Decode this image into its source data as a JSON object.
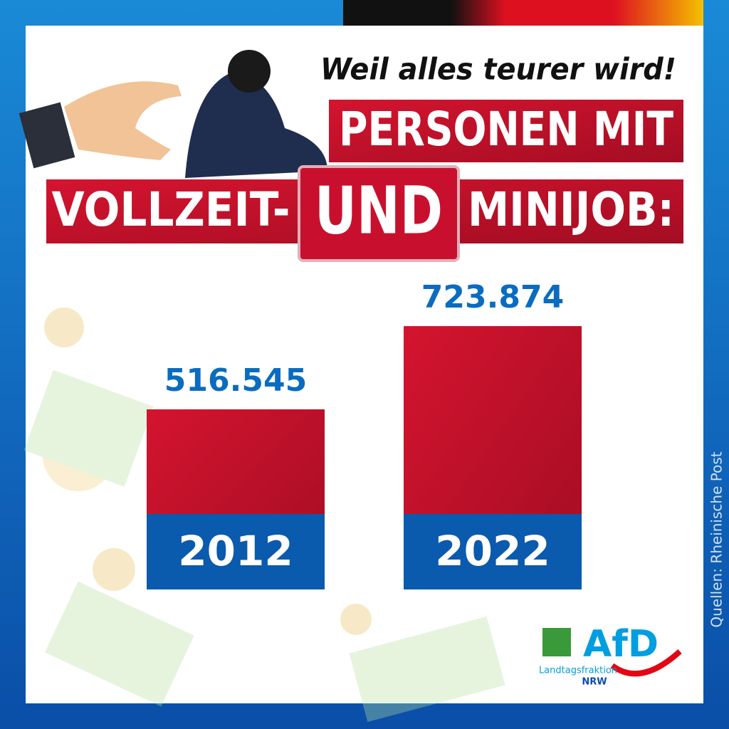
{
  "chart_data": {
    "type": "bar",
    "kicker": "Weil alles teurer wird!",
    "title_lines": [
      "PERSONEN MIT",
      "VOLLZEIT-",
      "UND",
      "MINIJOB:"
    ],
    "categories": [
      "2012",
      "2022"
    ],
    "values": [
      516545,
      723874
    ],
    "value_labels": [
      "516.545",
      "723.874"
    ],
    "color": "#c8102e",
    "ylim": [
      68000,
      724000
    ],
    "source": "Quellen: Rheinische Post",
    "logo": {
      "name": "AfD",
      "line1": "Landtagsfraktion",
      "line2": "NRW"
    }
  }
}
